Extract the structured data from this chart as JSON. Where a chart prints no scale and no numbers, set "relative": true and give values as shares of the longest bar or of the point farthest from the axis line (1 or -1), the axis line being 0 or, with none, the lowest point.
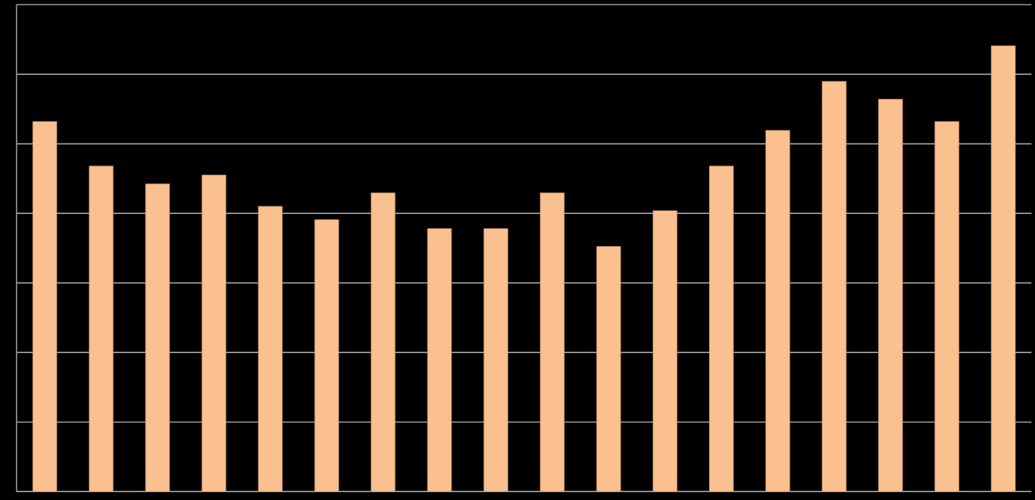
{
  "chart_data": {
    "type": "bar",
    "relative": true,
    "grid": "y",
    "categories": [
      null,
      null,
      null,
      null,
      null,
      null,
      null,
      null,
      null,
      null,
      null,
      null,
      null,
      null,
      null,
      null,
      null,
      null
    ],
    "color": "#fac08f",
    "values": [
      0.83,
      0.73,
      0.69,
      0.71,
      0.64,
      0.61,
      0.67,
      0.59,
      0.59,
      0.67,
      0.55,
      0.63,
      0.73,
      0.81,
      0.92,
      0.88,
      0.83,
      1
    ]
  }
}
